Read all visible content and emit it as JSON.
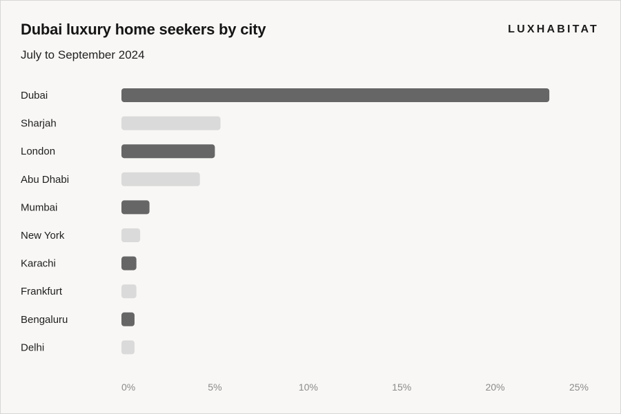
{
  "header": {
    "title": "Dubai luxury home seekers by city",
    "subtitle": "July to September 2024",
    "brand": "LUXHABITAT"
  },
  "colors": {
    "bar_dark": "#666666",
    "bar_light": "#dadada",
    "background": "#f8f7f5"
  },
  "chart_data": {
    "type": "bar",
    "orientation": "horizontal",
    "title": "Dubai luxury home seekers by city",
    "subtitle": "July to September 2024",
    "categories": [
      "Dubai",
      "Sharjah",
      "London",
      "Abu Dhabi",
      "Mumbai",
      "New York",
      "Karachi",
      "Frankfurt",
      "Bengaluru",
      "Delhi"
    ],
    "values": [
      22.9,
      5.3,
      5.0,
      4.2,
      1.5,
      1.0,
      0.8,
      0.8,
      0.7,
      0.7
    ],
    "unit": "%",
    "xlim": [
      0,
      25
    ],
    "xticks": [
      "0%",
      "5%",
      "10%",
      "15%",
      "20%",
      "25%"
    ],
    "xtick_values": [
      0,
      5,
      10,
      15,
      20,
      25
    ],
    "grid": false,
    "legend": "none",
    "bar_color_pattern": [
      "dark",
      "light"
    ]
  }
}
